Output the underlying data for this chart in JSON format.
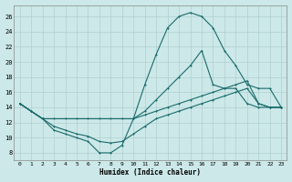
{
  "xlabel": "Humidex (Indice chaleur)",
  "xlim": [
    -0.5,
    23.5
  ],
  "ylim": [
    7.0,
    27.5
  ],
  "yticks": [
    8,
    10,
    12,
    14,
    16,
    18,
    20,
    22,
    24,
    26
  ],
  "xticks": [
    0,
    1,
    2,
    3,
    4,
    5,
    6,
    7,
    8,
    9,
    10,
    11,
    12,
    13,
    14,
    15,
    16,
    17,
    18,
    19,
    20,
    21,
    22,
    23
  ],
  "bg_color": "#cce8e8",
  "grid_color": "#b0d0d0",
  "line_color": "#1a6b6b",
  "curve1_x": [
    0,
    1,
    2,
    3,
    4,
    5,
    6,
    7,
    8,
    9,
    10,
    11,
    12,
    13,
    14,
    15,
    16,
    17,
    18,
    19,
    20,
    21,
    22,
    23
  ],
  "curve1_y": [
    14.5,
    13.5,
    12.5,
    11.0,
    10.5,
    10.0,
    9.5,
    8.0,
    8.0,
    9.0,
    12.5,
    17.0,
    21.0,
    24.5,
    26.0,
    26.5,
    26.0,
    24.5,
    21.5,
    19.5,
    17.0,
    16.5,
    16.5,
    14.0
  ],
  "curve2_x": [
    0,
    1,
    2,
    10,
    11,
    12,
    13,
    14,
    15,
    16,
    17,
    18,
    19,
    20,
    21,
    22,
    23
  ],
  "curve2_y": [
    14.5,
    13.5,
    12.5,
    12.5,
    13.5,
    15.0,
    16.5,
    18.0,
    19.5,
    21.5,
    17.0,
    16.5,
    16.5,
    14.5,
    14.0,
    14.0,
    14.0
  ],
  "curve3_x": [
    0,
    1,
    2,
    3,
    4,
    5,
    6,
    7,
    8,
    9,
    10,
    11,
    12,
    13,
    14,
    15,
    16,
    17,
    18,
    19,
    20,
    21,
    22,
    23
  ],
  "curve3_y": [
    14.5,
    13.5,
    12.5,
    12.5,
    12.5,
    12.5,
    12.5,
    12.5,
    12.5,
    12.5,
    12.5,
    13.0,
    13.5,
    14.0,
    14.5,
    15.0,
    15.5,
    16.0,
    16.5,
    17.0,
    17.5,
    14.5,
    14.0,
    14.0
  ],
  "curve4_x": [
    0,
    1,
    2,
    3,
    4,
    5,
    6,
    7,
    8,
    9,
    10,
    11,
    12,
    13,
    14,
    15,
    16,
    17,
    18,
    19,
    20,
    21,
    22,
    23
  ],
  "curve4_y": [
    14.5,
    13.5,
    12.5,
    11.5,
    11.0,
    10.5,
    10.2,
    9.5,
    9.3,
    9.5,
    10.5,
    11.5,
    12.5,
    13.0,
    13.5,
    14.0,
    14.5,
    15.0,
    15.5,
    16.0,
    16.5,
    14.5,
    14.0,
    14.0
  ]
}
